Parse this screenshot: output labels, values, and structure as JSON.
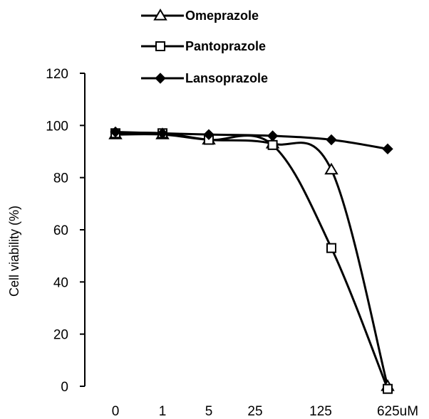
{
  "chart_data": {
    "type": "line",
    "title": "",
    "xlabel": "",
    "ylabel": "Cell viability  (%)",
    "categories": [
      "0",
      "1",
      "5",
      "25",
      "125",
      "625uM"
    ],
    "ylim": [
      0,
      120
    ],
    "yticks": [
      0,
      20,
      40,
      60,
      80,
      100,
      120
    ],
    "grid": false,
    "legend_position": "top",
    "series": [
      {
        "name": "Omeprazole",
        "marker": "open-triangle",
        "x": [
          0,
          1,
          2,
          3.2,
          4,
          5
        ],
        "values": [
          96.5,
          96.5,
          94.5,
          93,
          83,
          0
        ]
      },
      {
        "name": "Pantoprazole",
        "marker": "open-square",
        "x": [
          0,
          1,
          2,
          3.2,
          4,
          5
        ],
        "values": [
          97,
          97,
          94.5,
          92.5,
          53,
          -1
        ]
      },
      {
        "name": "Lansoprazole",
        "marker": "filled-diamond",
        "x": [
          0,
          1,
          2,
          3.2,
          4,
          5
        ],
        "values": [
          97.5,
          97,
          96.5,
          96,
          94.5,
          91
        ]
      }
    ]
  }
}
